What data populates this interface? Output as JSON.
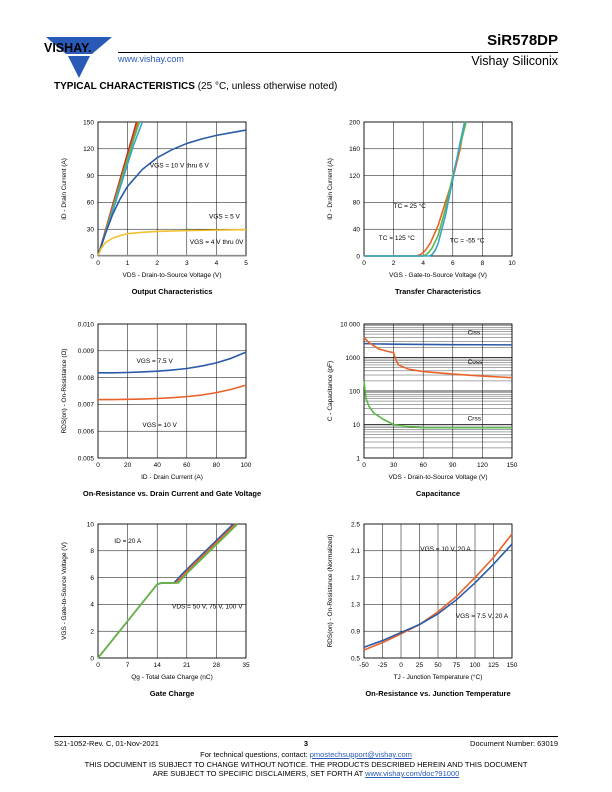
{
  "header": {
    "logo_text": "VISHAY.",
    "website": "www.vishay.com",
    "part_number": "SiR578DP",
    "company": "Vishay Siliconix"
  },
  "section": {
    "title": "TYPICAL CHARACTERISTICS",
    "note": "(25 °C, unless otherwise noted)"
  },
  "footer": {
    "revision": "S21-1052-Rev. C, 01-Nov-2021",
    "page": "3",
    "document_number": "Document Number: 63019",
    "contact_prefix": "For technical questions, contact: ",
    "contact_email": "pmostechsupport@vishay.com",
    "disclaimer1": "THIS DOCUMENT IS SUBJECT TO CHANGE WITHOUT NOTICE. THE PRODUCTS DESCRIBED HEREIN AND THIS DOCUMENT",
    "disclaimer2_prefix": "ARE SUBJECT TO SPECIFIC DISCLAIMERS, SET FORTH AT ",
    "disclaimer2_link": "www.vishay.com/doc?91000"
  },
  "colors": {
    "darkred": "#b5322a",
    "orange": "#e8622a",
    "green": "#5cb84a",
    "teal": "#3aa3c8",
    "blue": "#2b5aa8",
    "gold": "#f2c230",
    "gray": "#8a8a8a"
  },
  "chart_data": [
    {
      "type": "line",
      "title": "Output Characteristics",
      "xlabel": "VDS - Drain-to-Source Voltage (V)",
      "ylabel": "ID - Drain Current (A)",
      "xlim": [
        0,
        5
      ],
      "ylim": [
        0,
        150
      ],
      "xticks": [
        "0",
        "1",
        "2",
        "3",
        "4",
        "5"
      ],
      "yticks": [
        "0",
        "30",
        "60",
        "90",
        "120",
        "150"
      ],
      "annotations": [
        "VGS = 10 V thru 6 V",
        "VGS = 5 V",
        "VGS = 4 V thru 0V"
      ],
      "series": [
        {
          "color": "#b5322a",
          "x": [
            0,
            0.2,
            0.4,
            0.6,
            0.8,
            1.0,
            1.2,
            1.3
          ],
          "y": [
            0,
            23,
            46,
            69,
            92,
            115,
            138,
            150
          ]
        },
        {
          "color": "#e8622a",
          "x": [
            0,
            0.2,
            0.4,
            0.6,
            0.8,
            1.0,
            1.2,
            1.35
          ],
          "y": [
            0,
            22,
            44,
            66,
            88,
            110,
            132,
            150
          ]
        },
        {
          "color": "#5cb84a",
          "x": [
            0,
            0.2,
            0.4,
            0.6,
            0.8,
            1.0,
            1.2,
            1.4
          ],
          "y": [
            0,
            21,
            42,
            64,
            86,
            108,
            130,
            150
          ]
        },
        {
          "color": "#3aa3c8",
          "x": [
            0,
            0.2,
            0.4,
            0.6,
            0.8,
            1.0,
            1.2,
            1.5
          ],
          "y": [
            0,
            20,
            40,
            61,
            82,
            103,
            124,
            150
          ]
        },
        {
          "color": "#2b5aa8",
          "x": [
            0,
            0.25,
            0.5,
            0.75,
            1.0,
            1.5,
            2.0,
            2.5,
            3.0,
            3.5,
            4.0,
            4.5,
            5.0
          ],
          "y": [
            0,
            25,
            47,
            64,
            78,
            97,
            110,
            119,
            126,
            131,
            135,
            138,
            141
          ]
        },
        {
          "color": "#f2c230",
          "x": [
            0,
            0.1,
            0.25,
            0.5,
            0.75,
            1.0,
            1.5,
            2.0,
            3.0,
            4.0,
            5.0
          ],
          "y": [
            0,
            8,
            15,
            20,
            23,
            25,
            26.5,
            27.5,
            28.5,
            29,
            29.5
          ]
        },
        {
          "color": "#8a8a8a",
          "x": [
            0,
            5
          ],
          "y": [
            0.3,
            0.3
          ]
        }
      ]
    },
    {
      "type": "line",
      "title": "Transfer Characteristics",
      "xlabel": "VGS - Gate-to-Source Voltage (V)",
      "ylabel": "ID - Drain Current (A)",
      "xlim": [
        0,
        10
      ],
      "ylim": [
        0,
        200
      ],
      "xticks": [
        "0",
        "2",
        "4",
        "6",
        "8",
        "10"
      ],
      "yticks": [
        "0",
        "40",
        "80",
        "120",
        "160",
        "200"
      ],
      "annotations": [
        "TC = 25 °C",
        "TC = 125 °C",
        "TC = -55 °C"
      ],
      "series": [
        {
          "color": "#e8622a",
          "x": [
            0,
            3.5,
            3.8,
            4.0,
            4.2,
            4.5,
            5.0,
            5.5,
            6.0,
            6.5,
            6.8
          ],
          "y": [
            0,
            0,
            2,
            5,
            10,
            20,
            45,
            80,
            115,
            160,
            200
          ]
        },
        {
          "color": "#5cb84a",
          "x": [
            0,
            4.0,
            4.2,
            4.4,
            4.6,
            5.0,
            5.5,
            6.0,
            6.5,
            6.9
          ],
          "y": [
            0,
            0,
            2,
            6,
            12,
            30,
            70,
            120,
            165,
            200
          ]
        },
        {
          "color": "#3aa3c8",
          "x": [
            0,
            4.4,
            4.6,
            4.8,
            5.0,
            5.5,
            6.0,
            6.5,
            6.8
          ],
          "y": [
            0,
            0,
            2,
            8,
            18,
            60,
            115,
            170,
            200
          ]
        }
      ]
    },
    {
      "type": "line",
      "title": "On-Resistance vs. Drain Current and Gate Voltage",
      "xlabel": "ID - Drain Current (A)",
      "ylabel": "RDS(on) - On-Resistance (Ω)",
      "xlim": [
        0,
        100
      ],
      "ylim": [
        0.005,
        0.01
      ],
      "xticks": [
        "0",
        "20",
        "40",
        "60",
        "80",
        "100"
      ],
      "yticks": [
        "0.005",
        "0.006",
        "0.007",
        "0.008",
        "0.009",
        "0.010"
      ],
      "annotations": [
        "VGS = 7.5 V",
        "VGS = 10 V"
      ],
      "series": [
        {
          "color": "#2b5aa8",
          "x": [
            0,
            10,
            20,
            30,
            40,
            50,
            60,
            70,
            80,
            90,
            100
          ],
          "y": [
            0.00818,
            0.00818,
            0.00819,
            0.00821,
            0.00824,
            0.00828,
            0.00834,
            0.00843,
            0.00855,
            0.00872,
            0.00895
          ]
        },
        {
          "color": "#e8622a",
          "x": [
            0,
            10,
            20,
            30,
            40,
            50,
            60,
            70,
            80,
            90,
            100
          ],
          "y": [
            0.00718,
            0.00718,
            0.00719,
            0.0072,
            0.00722,
            0.00725,
            0.00729,
            0.00735,
            0.00744,
            0.00756,
            0.00772
          ]
        }
      ]
    },
    {
      "type": "line",
      "title": "Capacitance",
      "xlabel": "VDS - Drain-to-Source Voltage (V)",
      "ylabel": "C - Capacitance (pF)",
      "log_y": true,
      "xlim": [
        0,
        150
      ],
      "ylim": [
        1,
        10000
      ],
      "xticks": [
        "0",
        "30",
        "60",
        "90",
        "120",
        "150"
      ],
      "yticks": [
        "1",
        "10",
        "100",
        "1000",
        "10 000"
      ],
      "annotations": [
        "Ciss",
        "Coss",
        "Crss"
      ],
      "series": [
        {
          "color": "#2b5aa8",
          "x": [
            0,
            10,
            30,
            60,
            90,
            120,
            150
          ],
          "y": [
            2600,
            2550,
            2500,
            2450,
            2420,
            2400,
            2380
          ]
        },
        {
          "color": "#e8622a",
          "x": [
            0,
            5,
            15,
            25,
            30,
            32,
            35,
            45,
            60,
            90,
            120,
            150
          ],
          "y": [
            4000,
            2800,
            1800,
            1500,
            1400,
            900,
            600,
            450,
            380,
            320,
            280,
            250
          ]
        },
        {
          "color": "#5cb84a",
          "x": [
            0,
            2,
            5,
            10,
            20,
            30,
            40,
            50,
            60,
            90,
            120,
            150
          ],
          "y": [
            200,
            60,
            35,
            22,
            14,
            10,
            9,
            8.5,
            8,
            8,
            8,
            8
          ]
        }
      ]
    },
    {
      "type": "line",
      "title": "Gate Charge",
      "xlabel": "Qg - Total Gate Charge (nC)",
      "ylabel": "VGS - Gate-to-Source Voltage (V)",
      "xlim": [
        0,
        35
      ],
      "ylim": [
        0,
        10
      ],
      "xticks": [
        "0",
        "7",
        "14",
        "21",
        "28",
        "35"
      ],
      "yticks": [
        "0",
        "2",
        "4",
        "6",
        "8",
        "10"
      ],
      "annotations": [
        "ID = 20 A",
        "VDS = 50 V, 75 V, 100 V"
      ],
      "series": [
        {
          "color": "#2b5aa8",
          "x": [
            0,
            14,
            15,
            18,
            20,
            32
          ],
          "y": [
            0,
            5.5,
            5.6,
            5.6,
            6.3,
            10
          ]
        },
        {
          "color": "#e8622a",
          "x": [
            0,
            14,
            15,
            18.5,
            20.5,
            32.5
          ],
          "y": [
            0,
            5.5,
            5.6,
            5.6,
            6.3,
            10
          ]
        },
        {
          "color": "#5cb84a",
          "x": [
            0,
            14,
            15,
            19,
            21,
            33
          ],
          "y": [
            0,
            5.5,
            5.6,
            5.6,
            6.3,
            10
          ]
        }
      ]
    },
    {
      "type": "line",
      "title": "On-Resistance vs. Junction Temperature",
      "xlabel": "TJ - Junction Temperature (°C)",
      "ylabel": "RDS(on) - On-Resistance (Normalized)",
      "xlim": [
        -50,
        150
      ],
      "ylim": [
        0.5,
        2.5
      ],
      "xticks": [
        "-50",
        "-25",
        "0",
        "25",
        "50",
        "75",
        "100",
        "125",
        "150"
      ],
      "yticks": [
        "0.5",
        "0.9",
        "1.3",
        "1.7",
        "2.1",
        "2.5"
      ],
      "annotations": [
        "VGS = 10 V, 20 A",
        "VGS = 7.5 V, 20 A"
      ],
      "series": [
        {
          "color": "#e8622a",
          "x": [
            -50,
            -25,
            0,
            25,
            50,
            75,
            100,
            125,
            150
          ],
          "y": [
            0.62,
            0.73,
            0.86,
            1.0,
            1.19,
            1.42,
            1.7,
            2.0,
            2.35
          ]
        },
        {
          "color": "#2b5aa8",
          "x": [
            -50,
            -25,
            0,
            25,
            50,
            75,
            100,
            125,
            150
          ],
          "y": [
            0.66,
            0.76,
            0.88,
            1.0,
            1.16,
            1.37,
            1.62,
            1.9,
            2.2
          ]
        }
      ]
    }
  ]
}
